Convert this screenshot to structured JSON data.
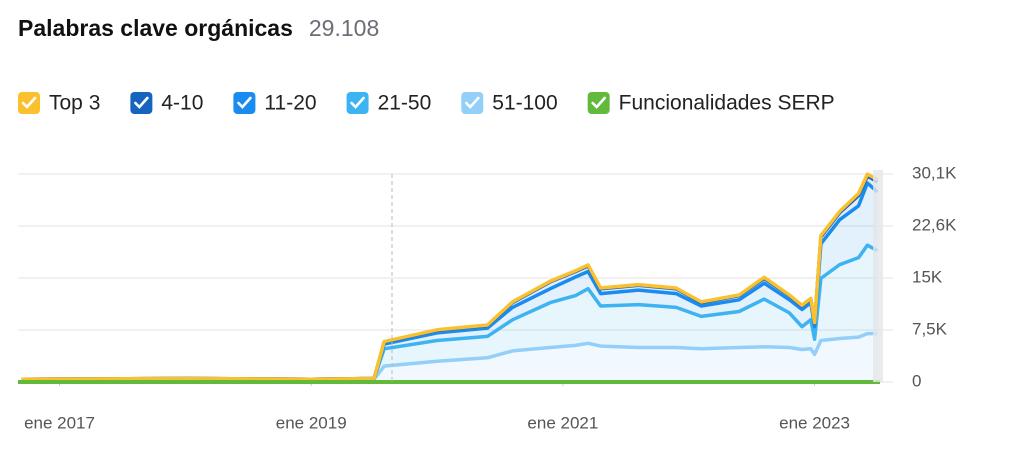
{
  "chart_data": {
    "type": "stacked-area",
    "title": "Palabras clave orgánicas",
    "subtitle": "29.108",
    "x": [
      2016.7,
      2018.0,
      2019.0,
      2019.5,
      2019.58,
      2020.0,
      2020.4,
      2020.6,
      2020.9,
      2021.1,
      2021.2,
      2021.3,
      2021.6,
      2021.9,
      2022.1,
      2022.4,
      2022.6,
      2022.8,
      2022.9,
      2022.97,
      2023.0,
      2023.05,
      2023.2,
      2023.35,
      2023.42,
      2023.5
    ],
    "series": [
      {
        "name": "Top 3",
        "color": "#fbc02d",
        "values": [
          0,
          0,
          0,
          0,
          50,
          50,
          50,
          100,
          100,
          100,
          150,
          100,
          100,
          100,
          100,
          100,
          150,
          100,
          100,
          100,
          100,
          200,
          200,
          300,
          300,
          300
        ]
      },
      {
        "name": "4-10",
        "color": "#1664c0",
        "values": [
          0,
          0,
          0,
          0,
          300,
          400,
          400,
          700,
          1000,
          800,
          800,
          700,
          700,
          700,
          500,
          600,
          700,
          600,
          500,
          500,
          500,
          1000,
          1000,
          1500,
          1000,
          1500
        ]
      },
      {
        "name": "11-20",
        "color": "#1a8cf0",
        "values": [
          0,
          0,
          0,
          0,
          700,
          1100,
          1200,
          1800,
          2000,
          2700,
          2500,
          1800,
          2100,
          2000,
          1500,
          1700,
          2300,
          1900,
          2500,
          2500,
          1800,
          5000,
          6500,
          7500,
          9000,
          8500
        ]
      },
      {
        "name": "21-50",
        "color": "#3db3f2",
        "values": [
          100,
          100,
          100,
          100,
          2500,
          3000,
          3100,
          4500,
          6500,
          7200,
          7900,
          5800,
          6200,
          5800,
          4700,
          5200,
          6900,
          5000,
          3300,
          4200,
          2200,
          9000,
          10700,
          11500,
          12800,
          12000
        ]
      },
      {
        "name": "51-100",
        "color": "#93cff8",
        "values": [
          300,
          400,
          300,
          400,
          2300,
          3000,
          3500,
          4500,
          5000,
          5300,
          5600,
          5200,
          5000,
          5000,
          4800,
          5000,
          5100,
          5000,
          4700,
          4800,
          4000,
          6000,
          6300,
          6500,
          7000,
          7000
        ]
      }
    ],
    "serp_features": {
      "name": "Funcionalidades SERP",
      "color": "#62ba3d"
    },
    "xlim": [
      2016.67,
      2023.52
    ],
    "xticks": [
      {
        "value": 2017,
        "label": "ene 2017"
      },
      {
        "value": 2019,
        "label": "ene 2019"
      },
      {
        "value": 2021,
        "label": "ene 2021"
      },
      {
        "value": 2023,
        "label": "ene 2023"
      }
    ],
    "ylim": [
      0,
      30108
    ],
    "yticks": [
      0,
      {
        "value": 7527,
        "label": "7,5K"
      },
      {
        "value": 15054,
        "label": "15K"
      },
      {
        "value": 22581,
        "label": "22,6K"
      },
      {
        "value": 30108,
        "label": "30,1K"
      }
    ],
    "grid": true
  }
}
